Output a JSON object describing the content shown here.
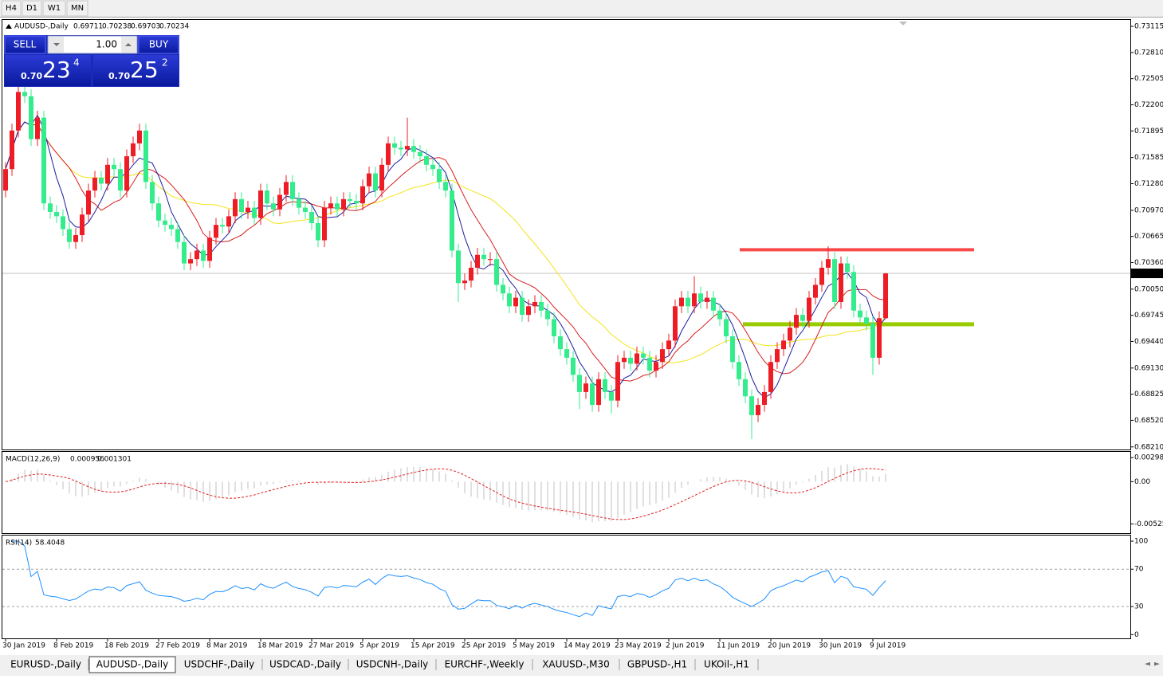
{
  "toolbar": {
    "timeframes": [
      "H4",
      "D1",
      "W1",
      "MN"
    ]
  },
  "trade_panel": {
    "sell": "SELL",
    "buy": "BUY",
    "lot": "1.00",
    "bid": {
      "prefix": "0.70",
      "big": "23",
      "small": "4"
    },
    "ask": {
      "prefix": "0.70",
      "big": "25",
      "small": "2"
    }
  },
  "chart_data": {
    "type": "candlestick",
    "title": "AUDUSD-,Daily",
    "categories": [
      "30 Jan 2019",
      null,
      null,
      null,
      null,
      null,
      null,
      null,
      "8 Feb 2019",
      null,
      null,
      null,
      null,
      null,
      null,
      null,
      "18 Feb 2019",
      null,
      null,
      null,
      null,
      null,
      null,
      null,
      "27 Feb 2019",
      null,
      null,
      null,
      null,
      null,
      null,
      null,
      "8 Mar 2019",
      null,
      null,
      null,
      null,
      null,
      null,
      null,
      "18 Mar 2019",
      null,
      null,
      null,
      null,
      null,
      null,
      null,
      "27 Mar 2019",
      null,
      null,
      null,
      null,
      null,
      null,
      null,
      "5 Apr 2019",
      null,
      null,
      null,
      null,
      null,
      null,
      null,
      "15 Apr 2019",
      null,
      null,
      null,
      null,
      null,
      null,
      null,
      "25 Apr 2019",
      null,
      null,
      null,
      null,
      null,
      null,
      null,
      "5 May 2019",
      null,
      null,
      null,
      null,
      null,
      null,
      null,
      "14 May 2019",
      null,
      null,
      null,
      null,
      null,
      null,
      null,
      "23 May 2019",
      null,
      null,
      null,
      null,
      null,
      null,
      null,
      "2 Jun 2019",
      null,
      null,
      null,
      null,
      null,
      null,
      null,
      "11 Jun 2019",
      null,
      null,
      null,
      null,
      null,
      null,
      null,
      "20 Jun 2019",
      null,
      null,
      null,
      null,
      null,
      null,
      null,
      "30 Jun 2019",
      null,
      null,
      null,
      null,
      null,
      null,
      null,
      "9 Jul 2019",
      null,
      null
    ],
    "open": [
      0.712,
      0.7145,
      0.719,
      0.7235,
      0.723,
      0.718,
      0.7205,
      0.7105,
      0.7095,
      0.709,
      0.7075,
      0.706,
      0.7068,
      0.7092,
      0.712,
      0.7135,
      0.7128,
      0.715,
      0.7145,
      0.712,
      0.716,
      0.7175,
      0.719,
      0.713,
      0.7105,
      0.7085,
      0.708,
      0.7075,
      0.706,
      0.7035,
      0.704,
      0.705,
      0.7038,
      0.7065,
      0.708,
      0.7078,
      0.709,
      0.711,
      0.7095,
      0.71,
      0.7088,
      0.712,
      0.7105,
      0.7098,
      0.7115,
      0.713,
      0.711,
      0.71,
      0.7095,
      0.7082,
      0.7062,
      0.71,
      0.7105,
      0.7098,
      0.711,
      0.7108,
      0.7105,
      0.7125,
      0.714,
      0.712,
      0.715,
      0.7175,
      0.717,
      0.7168,
      0.7172,
      0.7165,
      0.716,
      0.715,
      0.7145,
      0.713,
      0.712,
      0.705,
      0.7012,
      0.7015,
      0.703,
      0.7045,
      0.704,
      0.704,
      0.701,
      0.7,
      0.6985,
      0.6995,
      0.6975,
      0.6985,
      0.699,
      0.698,
      0.697,
      0.695,
      0.6935,
      0.6925,
      0.6905,
      0.6885,
      0.6895,
      0.687,
      0.69,
      0.6885,
      0.6875,
      0.692,
      0.6925,
      0.6918,
      0.693,
      0.6925,
      0.691,
      0.692,
      0.6935,
      0.6945,
      0.6985,
      0.6995,
      0.6985,
      0.7,
      0.699,
      0.6995,
      0.698,
      0.697,
      0.695,
      0.692,
      0.69,
      0.688,
      0.6858,
      0.687,
      0.6885,
      0.692,
      0.6935,
      0.6945,
      0.696,
      0.6975,
      0.6968,
      0.6995,
      0.701,
      0.703,
      0.704,
      0.699,
      0.7035,
      0.7025,
      0.698,
      0.6972,
      0.6965,
      0.6925,
      0.69711
    ],
    "high": [
      0.7153,
      0.7198,
      0.7243,
      0.7243,
      0.7238,
      0.7213,
      0.7213,
      0.7113,
      0.7103,
      0.7098,
      0.7083,
      0.7076,
      0.71,
      0.7128,
      0.7143,
      0.7143,
      0.7158,
      0.7158,
      0.7153,
      0.7168,
      0.7183,
      0.7198,
      0.7198,
      0.7138,
      0.7113,
      0.7093,
      0.7088,
      0.7083,
      0.7068,
      0.7048,
      0.7058,
      0.7058,
      0.7073,
      0.7088,
      0.7088,
      0.7098,
      0.7118,
      0.7118,
      0.7108,
      0.7108,
      0.7128,
      0.7128,
      0.7113,
      0.7123,
      0.7138,
      0.7138,
      0.7118,
      0.7108,
      0.7103,
      0.709,
      0.7108,
      0.7113,
      0.7113,
      0.7118,
      0.7118,
      0.7116,
      0.7133,
      0.7148,
      0.7148,
      0.7158,
      0.7183,
      0.7183,
      0.7178,
      0.7205,
      0.718,
      0.7173,
      0.7168,
      0.7158,
      0.7153,
      0.7138,
      0.7128,
      0.7058,
      0.7023,
      0.7038,
      0.7053,
      0.7053,
      0.7048,
      0.7048,
      0.7018,
      0.7008,
      0.7003,
      0.7003,
      0.6993,
      0.6998,
      0.6998,
      0.6988,
      0.6978,
      0.6958,
      0.6943,
      0.6933,
      0.6913,
      0.6903,
      0.6903,
      0.6908,
      0.6908,
      0.6893,
      0.6928,
      0.6933,
      0.6933,
      0.6938,
      0.6938,
      0.6933,
      0.6928,
      0.6943,
      0.6953,
      0.6993,
      0.7003,
      0.7003,
      0.702,
      0.7008,
      0.7003,
      0.7003,
      0.6988,
      0.6978,
      0.6958,
      0.6928,
      0.6908,
      0.6888,
      0.6878,
      0.6893,
      0.6928,
      0.6943,
      0.6953,
      0.6968,
      0.6983,
      0.6983,
      0.7003,
      0.7018,
      0.7038,
      0.7055,
      0.7048,
      0.7043,
      0.7043,
      0.7033,
      0.6988,
      0.698,
      0.6973,
      0.6979,
      0.70238
    ],
    "low": [
      0.7112,
      0.7137,
      0.7182,
      0.7222,
      0.7172,
      0.7172,
      0.7097,
      0.7087,
      0.7082,
      0.7067,
      0.7052,
      0.7052,
      0.706,
      0.7084,
      0.7112,
      0.712,
      0.712,
      0.7137,
      0.7112,
      0.7112,
      0.7152,
      0.7167,
      0.7122,
      0.7097,
      0.7077,
      0.7072,
      0.7067,
      0.7052,
      0.7027,
      0.7027,
      0.7032,
      0.703,
      0.703,
      0.7057,
      0.707,
      0.707,
      0.7082,
      0.7087,
      0.7087,
      0.708,
      0.708,
      0.7097,
      0.709,
      0.709,
      0.7107,
      0.7102,
      0.7092,
      0.7087,
      0.7074,
      0.7054,
      0.7054,
      0.7092,
      0.709,
      0.709,
      0.71,
      0.7097,
      0.7097,
      0.7117,
      0.7112,
      0.7112,
      0.7142,
      0.7162,
      0.716,
      0.716,
      0.7157,
      0.7152,
      0.7142,
      0.7137,
      0.7122,
      0.7112,
      0.7042,
      0.699,
      0.7004,
      0.7007,
      0.7022,
      0.7032,
      0.7032,
      0.7002,
      0.6992,
      0.6977,
      0.6977,
      0.6967,
      0.6967,
      0.6977,
      0.6972,
      0.6962,
      0.6942,
      0.6927,
      0.6917,
      0.6897,
      0.6865,
      0.6877,
      0.6862,
      0.6862,
      0.6877,
      0.686,
      0.6867,
      0.6912,
      0.691,
      0.691,
      0.6917,
      0.6902,
      0.6902,
      0.6912,
      0.6927,
      0.6937,
      0.6977,
      0.6977,
      0.6977,
      0.6982,
      0.6982,
      0.6972,
      0.6962,
      0.6942,
      0.6912,
      0.6892,
      0.6872,
      0.683,
      0.685,
      0.6862,
      0.6877,
      0.6912,
      0.6927,
      0.6937,
      0.6952,
      0.696,
      0.696,
      0.6987,
      0.7002,
      0.7022,
      0.6982,
      0.6982,
      0.7017,
      0.6972,
      0.6964,
      0.6957,
      0.6905,
      0.6917,
      0.69703
    ],
    "close": [
      0.7145,
      0.719,
      0.7235,
      0.723,
      0.718,
      0.7205,
      0.7105,
      0.7095,
      0.709,
      0.7075,
      0.706,
      0.7068,
      0.7092,
      0.712,
      0.7135,
      0.7128,
      0.715,
      0.7145,
      0.712,
      0.716,
      0.7175,
      0.719,
      0.713,
      0.7105,
      0.7085,
      0.708,
      0.7075,
      0.706,
      0.7035,
      0.704,
      0.705,
      0.7038,
      0.7065,
      0.708,
      0.7078,
      0.709,
      0.711,
      0.7095,
      0.71,
      0.7088,
      0.712,
      0.7105,
      0.7098,
      0.7115,
      0.713,
      0.711,
      0.71,
      0.7095,
      0.7082,
      0.7062,
      0.71,
      0.7105,
      0.7098,
      0.711,
      0.7108,
      0.7105,
      0.7125,
      0.714,
      0.712,
      0.715,
      0.7175,
      0.717,
      0.7168,
      0.7172,
      0.7165,
      0.716,
      0.715,
      0.7145,
      0.713,
      0.712,
      0.705,
      0.7012,
      0.7015,
      0.703,
      0.7045,
      0.704,
      0.704,
      0.701,
      0.7,
      0.6985,
      0.6995,
      0.6975,
      0.6985,
      0.699,
      0.698,
      0.697,
      0.695,
      0.6935,
      0.6925,
      0.6905,
      0.6885,
      0.6895,
      0.687,
      0.69,
      0.6885,
      0.6875,
      0.692,
      0.6925,
      0.6918,
      0.693,
      0.6925,
      0.691,
      0.692,
      0.6935,
      0.6945,
      0.6985,
      0.6995,
      0.6985,
      0.7,
      0.699,
      0.6995,
      0.698,
      0.697,
      0.695,
      0.692,
      0.69,
      0.688,
      0.6858,
      0.687,
      0.6885,
      0.692,
      0.6935,
      0.6945,
      0.696,
      0.6975,
      0.6968,
      0.6995,
      0.701,
      0.703,
      0.704,
      0.699,
      0.7035,
      0.7025,
      0.698,
      0.6972,
      0.6965,
      0.6925,
      0.69711,
      0.70234
    ],
    "up_color": "#ee1c25",
    "down_color": "#33ec8c",
    "ylim": [
      0.6818,
      0.7319
    ],
    "yticks": [
      0.73115,
      {
        "value": 0.7281,
        "label": "0.72810"
      },
      0.72505,
      {
        "value": 0.722,
        "label": "0.72200"
      },
      0.71895,
      0.71585,
      {
        "value": 0.7128,
        "label": "0.71280"
      },
      {
        "value": 0.7097,
        "label": "0.70970"
      },
      0.70665,
      {
        "value": 0.7036,
        "label": "0.70360"
      },
      {
        "value": 0.7005,
        "label": "0.70050"
      },
      0.69745,
      {
        "value": 0.6944,
        "label": "0.69440"
      },
      {
        "value": 0.6913,
        "label": "0.69130"
      },
      0.68825,
      {
        "value": 0.6852,
        "label": "0.68520"
      },
      {
        "value": 0.6821,
        "label": "0.68210"
      }
    ],
    "levels": [
      {
        "value": 0.7051,
        "color": "#f84848"
      },
      {
        "value": 0.6964,
        "color": "#99cc00"
      }
    ],
    "macd": {
      "label": "MACD(12,26,9)",
      "params": [
        12,
        26,
        9
      ],
      "value": 0.000956,
      "signal": 0.001301,
      "ylim": [
        -0.0064,
        0.0037
      ],
      "yticks": [
        0.002984,
        {
          "value": 0,
          "label": "0.00"
        },
        -0.00525
      ]
    },
    "rsi": {
      "label": "RSI(14)",
      "period": 14,
      "value": 58.4048,
      "ylim": [
        -4,
        106
      ],
      "yticks": [
        100,
        70,
        30,
        0
      ],
      "levels": [
        70,
        30
      ]
    }
  },
  "tabs": {
    "items": [
      "EURUSD-,Daily",
      "AUDUSD-,Daily",
      "USDCHF-,Daily",
      "USDCAD-,Daily",
      "USDCNH-,Daily",
      "EURCHF-,Weekly",
      "XAUUSD-,M30",
      "GBPUSD-,H1",
      "UKOil-,H1"
    ],
    "active": 1
  }
}
